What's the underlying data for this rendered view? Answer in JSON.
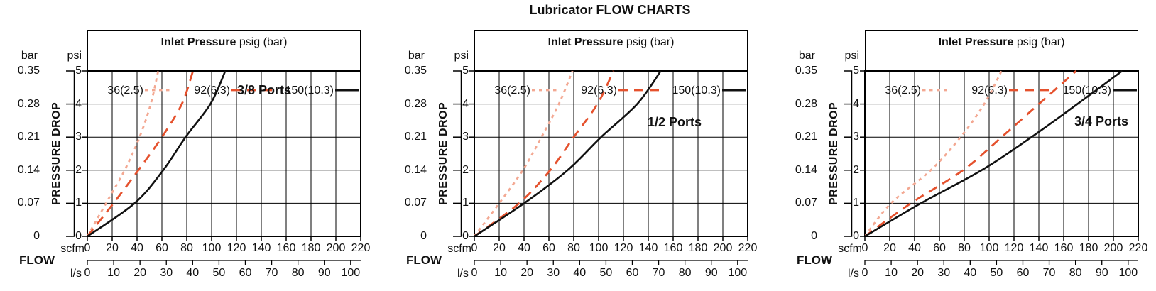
{
  "title": "Lubricator FLOW CHARTS",
  "legend": {
    "header_bold": "Inlet Pressure",
    "header_regular": " psig (bar)",
    "items": [
      {
        "label": "36(2.5)",
        "line": "dotted",
        "color": "#f3a892"
      },
      {
        "label": "92(6.3)",
        "line": "dashed",
        "color": "#e5512d"
      },
      {
        "label": "150(10.3)",
        "line": "solid",
        "color": "#111111"
      }
    ]
  },
  "axes": {
    "left_primary_unit": "bar",
    "left_secondary_unit": "psi",
    "left_axis_title": "PRESSURE DROP",
    "bar_ticks": [
      "0.35",
      "0.28",
      "0.21",
      "0.14",
      "0.07",
      "0"
    ],
    "psi_ticks": [
      "5",
      "4",
      "3",
      "2",
      "1",
      "0"
    ],
    "bottom_axis_title": "FLOW",
    "scfm_unit": "scfm",
    "scfm_ticks": [
      "0",
      "20",
      "40",
      "60",
      "80",
      "100",
      "120",
      "140",
      "160",
      "180",
      "200",
      "220"
    ],
    "ls_unit": "l/s",
    "ls_ticks": [
      "0",
      "10",
      "20",
      "30",
      "40",
      "50",
      "60",
      "70",
      "80",
      "90",
      "100"
    ]
  },
  "chart_data": [
    {
      "type": "line",
      "title": "3/8 Ports",
      "xlabel": "FLOW (scfm, with secondary l/s scale)",
      "ylabel": "PRESSURE DROP (psi, with secondary bar scale)",
      "xlim": [
        0,
        220
      ],
      "ylim": [
        0,
        5
      ],
      "grid": true,
      "legend_position": "top",
      "psi_points": [
        0,
        1,
        2,
        3,
        4,
        5
      ],
      "series": [
        {
          "name": "36(2.5)",
          "scfm": [
            0,
            15,
            30,
            42,
            51,
            57
          ]
        },
        {
          "name": "92(6.3)",
          "scfm": [
            0,
            21,
            41,
            60,
            76,
            85
          ]
        },
        {
          "name": "150(10.3)",
          "scfm": [
            0,
            38,
            61,
            79,
            99,
            111
          ]
        }
      ]
    },
    {
      "type": "line",
      "title": "1/2 Ports",
      "xlabel": "FLOW (scfm, with secondary l/s scale)",
      "ylabel": "PRESSURE DROP (psi, with secondary bar scale)",
      "xlim": [
        0,
        220
      ],
      "ylim": [
        0,
        5
      ],
      "grid": true,
      "legend_position": "top",
      "psi_points": [
        0,
        1,
        2,
        3,
        4,
        5
      ],
      "series": [
        {
          "name": "36(2.5)",
          "scfm": [
            0,
            20,
            39,
            54,
            68,
            79
          ]
        },
        {
          "name": "92(6.3)",
          "scfm": [
            0,
            36,
            61,
            80,
            99,
            112
          ]
        },
        {
          "name": "150(10.3)",
          "scfm": [
            0,
            40,
            75,
            102,
            131,
            150
          ]
        }
      ]
    },
    {
      "type": "line",
      "title": "3/4 Ports",
      "xlabel": "FLOW (scfm, with secondary l/s scale)",
      "ylabel": "PRESSURE DROP (psi, with secondary bar scale)",
      "xlim": [
        0,
        220
      ],
      "ylim": [
        0,
        5
      ],
      "grid": true,
      "legend_position": "top",
      "psi_points": [
        0,
        1,
        2,
        3,
        4,
        5
      ],
      "series": [
        {
          "name": "36(2.5)",
          "scfm": [
            0,
            21,
            53,
            77,
            96,
            110
          ]
        },
        {
          "name": "92(6.3)",
          "scfm": [
            0,
            37,
            79,
            110,
            140,
            170
          ]
        },
        {
          "name": "150(10.3)",
          "scfm": [
            0,
            45,
            94,
            134,
            171,
            207
          ]
        }
      ]
    }
  ]
}
